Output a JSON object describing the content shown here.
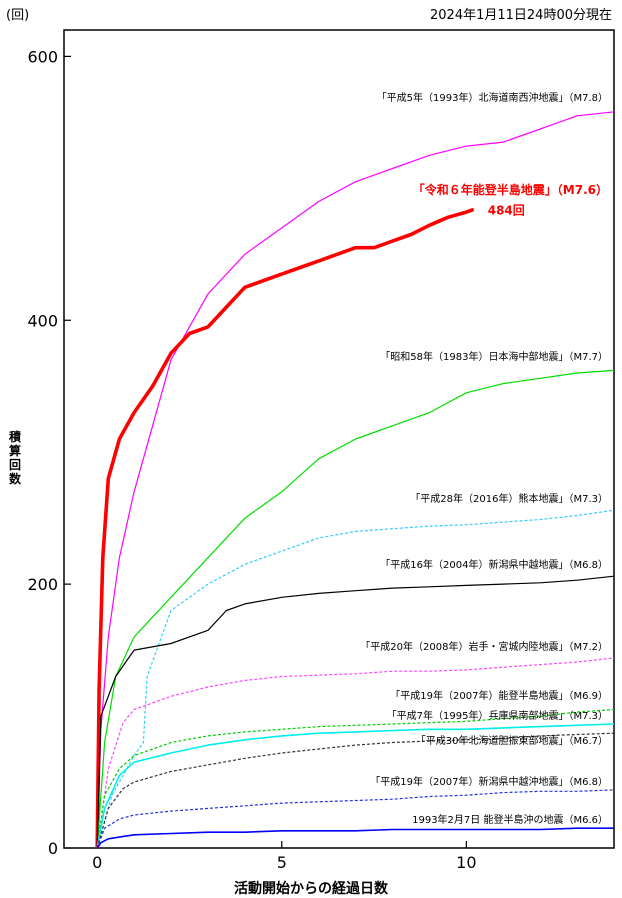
{
  "header": {
    "unit": "(回)",
    "timestamp": "2024年1月11日24時00分現在"
  },
  "chart_data": {
    "type": "line",
    "xlabel": "活動開始からの経過日数",
    "ylabel": "積算回数",
    "xlim": [
      -0.9,
      14
    ],
    "ylim": [
      0,
      620
    ],
    "xticks": [
      0,
      5,
      10
    ],
    "yticks": [
      0,
      200,
      400,
      600
    ],
    "grid": false,
    "series": [
      {
        "name": "「平成5年（1993年）北海道南西沖地震」（M7.8）",
        "color": "#ff00ff",
        "dash": false,
        "width": 1.2,
        "points": [
          [
            0,
            0
          ],
          [
            0.1,
            90
          ],
          [
            0.3,
            160
          ],
          [
            0.6,
            220
          ],
          [
            1,
            270
          ],
          [
            1.5,
            320
          ],
          [
            2,
            370
          ],
          [
            3,
            420
          ],
          [
            4,
            450
          ],
          [
            5,
            470
          ],
          [
            6,
            490
          ],
          [
            7,
            505
          ],
          [
            8,
            515
          ],
          [
            9,
            525
          ],
          [
            10,
            532
          ],
          [
            11,
            535
          ],
          [
            12,
            545
          ],
          [
            13,
            555
          ],
          [
            14,
            558
          ]
        ]
      },
      {
        "name": "「令和６年能登半島地震」（M7.6）",
        "color": "#ff0000",
        "dash": false,
        "width": 3.6,
        "label_color": "#ff0000",
        "points": [
          [
            0,
            0
          ],
          [
            0.05,
            120
          ],
          [
            0.15,
            220
          ],
          [
            0.3,
            280
          ],
          [
            0.6,
            310
          ],
          [
            1,
            330
          ],
          [
            1.5,
            350
          ],
          [
            2,
            375
          ],
          [
            2.5,
            390
          ],
          [
            3,
            395
          ],
          [
            3.5,
            410
          ],
          [
            4,
            425
          ],
          [
            4.5,
            430
          ],
          [
            5,
            435
          ],
          [
            5.5,
            440
          ],
          [
            6,
            445
          ],
          [
            6.5,
            450
          ],
          [
            7,
            455
          ],
          [
            7.5,
            455
          ],
          [
            8,
            460
          ],
          [
            8.5,
            465
          ],
          [
            9,
            472
          ],
          [
            9.5,
            478
          ],
          [
            10,
            482
          ],
          [
            10.2,
            484
          ]
        ]
      },
      {
        "name": "「昭和58年（1983年）日本海中部地震」（M7.7）",
        "color": "#00dd00",
        "dash": false,
        "width": 1.2,
        "points": [
          [
            0,
            0
          ],
          [
            0.2,
            80
          ],
          [
            0.5,
            130
          ],
          [
            1,
            160
          ],
          [
            2,
            190
          ],
          [
            3,
            220
          ],
          [
            4,
            250
          ],
          [
            5,
            270
          ],
          [
            6,
            295
          ],
          [
            7,
            310
          ],
          [
            8,
            320
          ],
          [
            9,
            330
          ],
          [
            10,
            345
          ],
          [
            11,
            352
          ],
          [
            12,
            356
          ],
          [
            13,
            360
          ],
          [
            14,
            362
          ]
        ]
      },
      {
        "name": "「平成28年（2016年）熊本地震」（M7.3）",
        "color": "#33ccff",
        "dash": true,
        "width": 1.2,
        "points": [
          [
            0,
            0
          ],
          [
            0.4,
            40
          ],
          [
            1,
            70
          ],
          [
            1.25,
            80
          ],
          [
            1.35,
            130
          ],
          [
            2,
            180
          ],
          [
            3,
            200
          ],
          [
            4,
            215
          ],
          [
            5,
            225
          ],
          [
            6,
            235
          ],
          [
            7,
            240
          ],
          [
            8,
            242
          ],
          [
            9,
            244
          ],
          [
            10,
            245
          ],
          [
            11,
            247
          ],
          [
            12,
            249
          ],
          [
            13,
            252
          ],
          [
            14,
            256
          ]
        ]
      },
      {
        "name": "「平成16年（2004年）新潟県中越地震」（M6.8）",
        "color": "#000000",
        "dash": false,
        "width": 1.2,
        "points": [
          [
            0,
            0
          ],
          [
            0.1,
            100
          ],
          [
            0.5,
            130
          ],
          [
            1,
            150
          ],
          [
            2,
            155
          ],
          [
            3,
            165
          ],
          [
            3.5,
            180
          ],
          [
            4,
            185
          ],
          [
            5,
            190
          ],
          [
            6,
            193
          ],
          [
            7,
            195
          ],
          [
            8,
            197
          ],
          [
            9,
            198
          ],
          [
            10,
            199
          ],
          [
            11,
            200
          ],
          [
            12,
            201
          ],
          [
            13,
            203
          ],
          [
            14,
            206
          ]
        ]
      },
      {
        "name": "「平成20年（2008年）岩手・宮城内陸地震」（M7.2）",
        "color": "#ff44ff",
        "dash": true,
        "width": 1.2,
        "points": [
          [
            0,
            0
          ],
          [
            0.3,
            60
          ],
          [
            0.7,
            95
          ],
          [
            1,
            105
          ],
          [
            2,
            115
          ],
          [
            3,
            122
          ],
          [
            4,
            127
          ],
          [
            5,
            130
          ],
          [
            6,
            131
          ],
          [
            7,
            132
          ],
          [
            8,
            134
          ],
          [
            9,
            134
          ],
          [
            10,
            135
          ],
          [
            11,
            137
          ],
          [
            12,
            139
          ],
          [
            13,
            141
          ],
          [
            14,
            144
          ]
        ]
      },
      {
        "name": "「平成19年（2007年）能登半島地震」（M6.9）",
        "color": "#00cc00",
        "dash": true,
        "width": 1.2,
        "points": [
          [
            0,
            0
          ],
          [
            0.2,
            40
          ],
          [
            0.6,
            60
          ],
          [
            1,
            70
          ],
          [
            2,
            80
          ],
          [
            3,
            85
          ],
          [
            4,
            88
          ],
          [
            5,
            90
          ],
          [
            6,
            92
          ],
          [
            7,
            93
          ],
          [
            8,
            94
          ],
          [
            9,
            95
          ],
          [
            10,
            96
          ],
          [
            11,
            98
          ],
          [
            12,
            100
          ],
          [
            13,
            103
          ],
          [
            14,
            105
          ]
        ]
      },
      {
        "name": "「平成7年（1995年）兵庫県南部地震」（M7.3）",
        "color": "#00eeee",
        "dash": false,
        "width": 1.6,
        "points": [
          [
            0,
            0
          ],
          [
            0.2,
            30
          ],
          [
            0.6,
            55
          ],
          [
            1,
            65
          ],
          [
            2,
            72
          ],
          [
            3,
            78
          ],
          [
            4,
            82
          ],
          [
            5,
            85
          ],
          [
            6,
            87
          ],
          [
            7,
            88
          ],
          [
            8,
            89
          ],
          [
            9,
            90
          ],
          [
            10,
            90
          ],
          [
            11,
            91
          ],
          [
            12,
            92
          ],
          [
            13,
            93
          ],
          [
            14,
            94
          ]
        ]
      },
      {
        "name": "「平成30年北海道胆振東部地震」（M6.7）",
        "color": "#333333",
        "dash": true,
        "width": 1.2,
        "points": [
          [
            0,
            0
          ],
          [
            0.3,
            30
          ],
          [
            0.7,
            45
          ],
          [
            1,
            50
          ],
          [
            2,
            58
          ],
          [
            3,
            63
          ],
          [
            4,
            68
          ],
          [
            5,
            72
          ],
          [
            6,
            75
          ],
          [
            7,
            78
          ],
          [
            8,
            80
          ],
          [
            9,
            81
          ],
          [
            10,
            82
          ],
          [
            11,
            83
          ],
          [
            12,
            85
          ],
          [
            13,
            86
          ],
          [
            14,
            87
          ]
        ]
      },
      {
        "name": "「平成19年（2007年）新潟県中越沖地震」（M6.8）",
        "color": "#2233dd",
        "dash": true,
        "width": 1.2,
        "points": [
          [
            0,
            0
          ],
          [
            0.2,
            15
          ],
          [
            0.6,
            22
          ],
          [
            1,
            25
          ],
          [
            2,
            28
          ],
          [
            3,
            30
          ],
          [
            4,
            32
          ],
          [
            5,
            34
          ],
          [
            6,
            35
          ],
          [
            7,
            36
          ],
          [
            8,
            37
          ],
          [
            9,
            39
          ],
          [
            10,
            40
          ],
          [
            11,
            42
          ],
          [
            12,
            43
          ],
          [
            13,
            43
          ],
          [
            14,
            44
          ]
        ]
      },
      {
        "name": "1993年2月7日 能登半島沖の地震（M6.6）",
        "color": "#0000ff",
        "dash": false,
        "width": 1.6,
        "points": [
          [
            0,
            0
          ],
          [
            0.1,
            4
          ],
          [
            0.3,
            7
          ],
          [
            1,
            10
          ],
          [
            2,
            11
          ],
          [
            3,
            12
          ],
          [
            4,
            12
          ],
          [
            5,
            13
          ],
          [
            6,
            13
          ],
          [
            7,
            13
          ],
          [
            8,
            14
          ],
          [
            9,
            14
          ],
          [
            10,
            14
          ],
          [
            11,
            14
          ],
          [
            12,
            14
          ],
          [
            13,
            15
          ],
          [
            14,
            15
          ]
        ]
      }
    ],
    "end_label": "484回"
  }
}
